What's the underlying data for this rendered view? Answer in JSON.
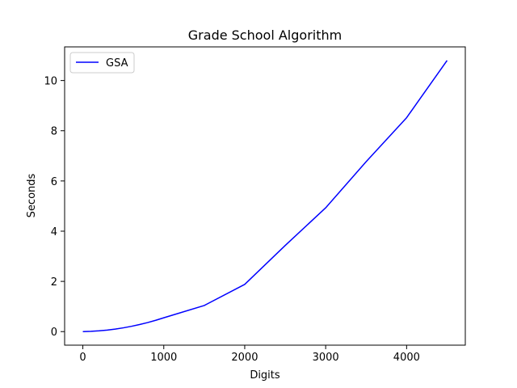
{
  "chart_data": {
    "type": "line",
    "title": "Grade School Algorithm",
    "xlabel": "Digits",
    "ylabel": "Seconds",
    "xlim": [
      -225,
      4725
    ],
    "ylim": [
      -0.54,
      11.34
    ],
    "xticks": [
      0,
      1000,
      2000,
      3000,
      4000
    ],
    "yticks": [
      0,
      2,
      4,
      6,
      8,
      10
    ],
    "grid": false,
    "legend_position": "top-left",
    "series": [
      {
        "name": "GSA",
        "color": "#0000ff",
        "x": [
          0,
          100,
          200,
          300,
          400,
          500,
          600,
          700,
          800,
          900,
          1000,
          1500,
          2000,
          2500,
          3000,
          3500,
          4000,
          4500
        ],
        "y": [
          0.0,
          0.01,
          0.03,
          0.06,
          0.1,
          0.15,
          0.21,
          0.28,
          0.36,
          0.45,
          0.55,
          1.04,
          1.88,
          3.43,
          4.93,
          6.77,
          8.52,
          10.8
        ]
      }
    ]
  }
}
